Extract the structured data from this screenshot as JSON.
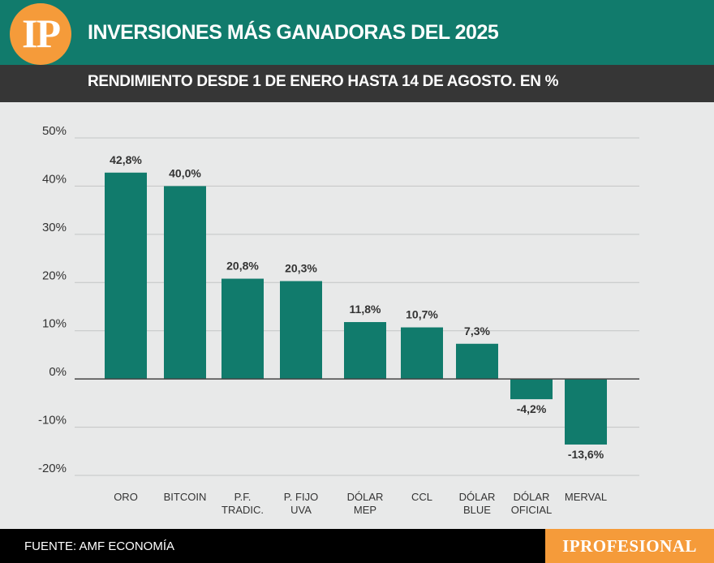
{
  "header": {
    "logo_text": "IP",
    "title": "INVERSIONES MÁS GANADORAS DEL 2025",
    "subtitle": "RENDIMIENTO DESDE 1 DE ENERO HASTA 14 DE AGOSTO. EN %"
  },
  "footer": {
    "source": "FUENTE: AMF ECONOMÍA",
    "brand": "IPROFESIONAL"
  },
  "colors": {
    "header": "#117b6c",
    "subbar": "#363636",
    "bar": "#117b6c",
    "accent": "#f59b3a",
    "background": "#e8e9e9"
  },
  "chart_data": {
    "type": "bar",
    "title": "INVERSIONES MÁS GANADORAS DEL 2025",
    "subtitle": "RENDIMIENTO DESDE 1 DE ENERO HASTA 14 DE AGOSTO. EN %",
    "categories": [
      [
        "ORO"
      ],
      [
        "BITCOIN"
      ],
      [
        "P.F.",
        "TRADIC."
      ],
      [
        "P. FIJO",
        "UVA"
      ],
      [
        "DÓLAR",
        "MEP"
      ],
      [
        "CCL"
      ],
      [
        "DÓLAR",
        "BLUE"
      ],
      [
        "DÓLAR",
        "OFICIAL"
      ],
      [
        "MERVAL"
      ]
    ],
    "values": [
      42.8,
      40.0,
      20.8,
      20.3,
      11.8,
      10.7,
      7.3,
      -4.2,
      -13.6
    ],
    "value_labels": [
      "42,8%",
      "40,0%",
      "20,8%",
      "20,3%",
      "11,8%",
      "10,7%",
      "7,3%",
      "-4,2%",
      "-13,6%"
    ],
    "yticks": [
      50,
      40,
      30,
      20,
      10,
      0,
      -10,
      -20
    ],
    "ytick_labels": [
      "50%",
      "40%",
      "30%",
      "20%",
      "10%",
      "0%",
      "-10%",
      "-20%"
    ],
    "ylim": [
      -20,
      50
    ],
    "grid": true,
    "xlabel": "",
    "ylabel": ""
  }
}
